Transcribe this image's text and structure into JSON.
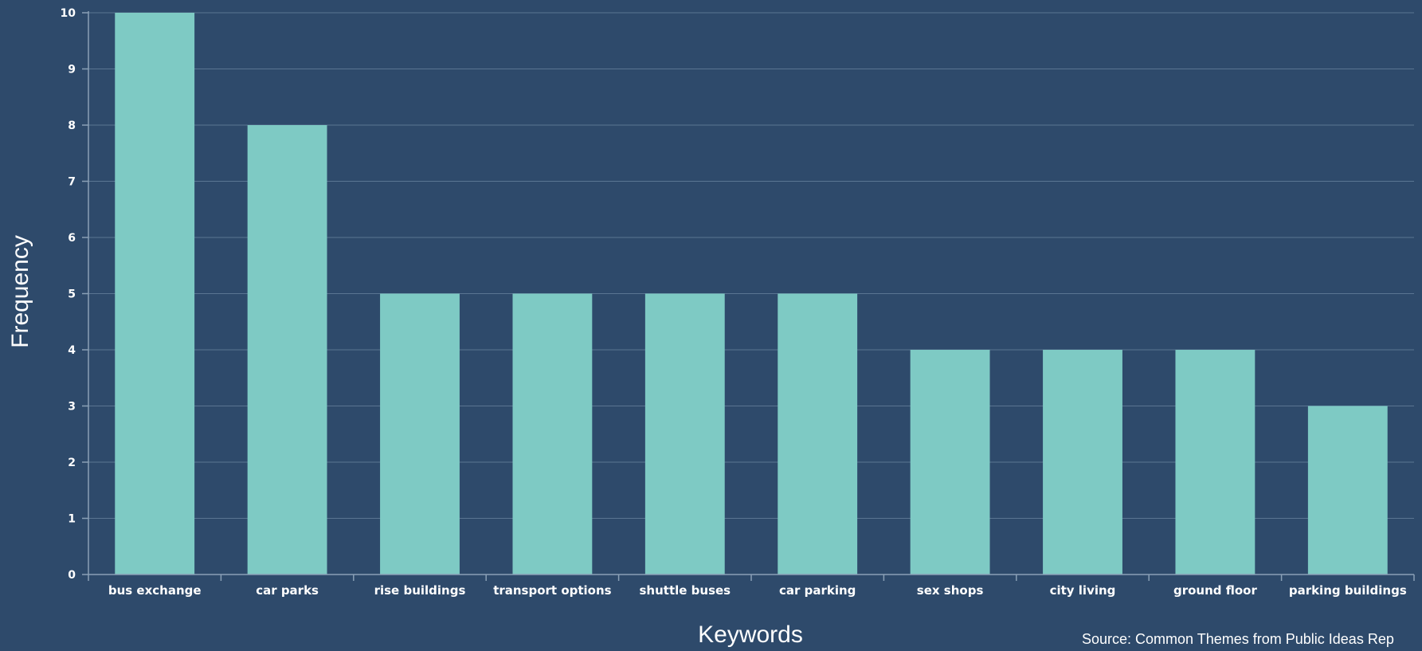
{
  "chart_data": {
    "type": "bar",
    "categories": [
      "bus exchange",
      "car parks",
      "rise buildings",
      "transport options",
      "shuttle buses",
      "car parking",
      "sex shops",
      "city living",
      "ground floor",
      "parking buildings"
    ],
    "values": [
      10,
      8,
      5,
      5,
      5,
      5,
      4,
      4,
      4,
      3
    ],
    "xlabel": "Keywords",
    "ylabel": "Frequency",
    "ylim": [
      0,
      10
    ],
    "yticks": [
      "0",
      "1",
      "2",
      "3",
      "4",
      "5",
      "6",
      "7",
      "8",
      "9",
      "10"
    ],
    "grid": true,
    "source": "Source: Common Themes from Public Ideas Rep",
    "colors": {
      "background": "#2e4a6b",
      "bar": "#7ecac4",
      "grid": "#5a7592",
      "axis": "#8aa0b6",
      "text": "#ffffff"
    }
  }
}
